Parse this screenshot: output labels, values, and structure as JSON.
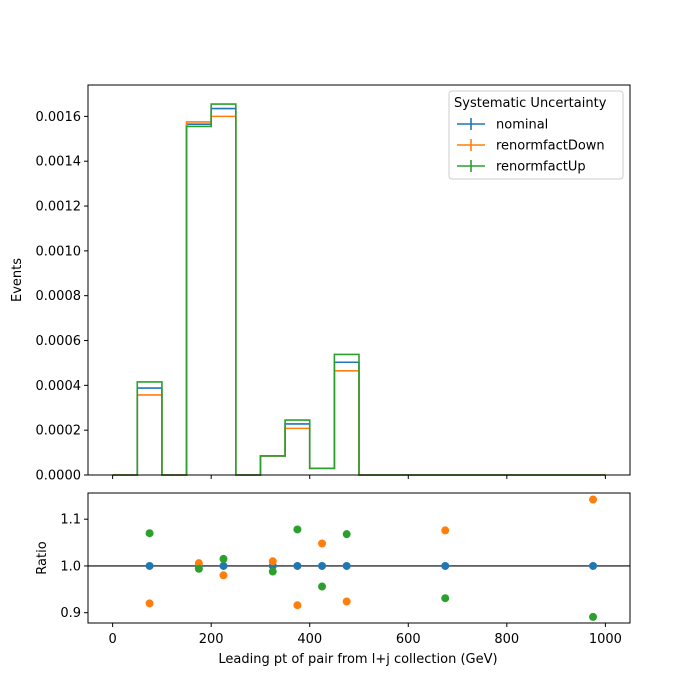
{
  "colors": {
    "nominal": "#1f77b4",
    "renormfactDown": "#ff7f0e",
    "renormfactUp": "#2ca02c",
    "axes": "#000000",
    "reference_line": "#000000"
  },
  "chart_data": [
    {
      "type": "histogram-step",
      "title": "",
      "xlabel": "",
      "ylabel": "Events",
      "xlim": [
        -50,
        1050
      ],
      "ylim": [
        0,
        0.00174
      ],
      "yticks": [
        0.0,
        0.0002,
        0.0004,
        0.0006,
        0.0008,
        0.001,
        0.0012,
        0.0014,
        0.0016
      ],
      "ytick_labels": [
        "0.0000",
        "0.0002",
        "0.0004",
        "0.0006",
        "0.0008",
        "0.0010",
        "0.0012",
        "0.0014",
        "0.0016"
      ],
      "xticks": [
        0,
        200,
        400,
        600,
        800,
        1000
      ],
      "grid": false,
      "legend": {
        "title": "Systematic Uncertainty",
        "placement": "top-right",
        "entries": [
          "nominal",
          "renormfactDown",
          "renormfactUp"
        ]
      },
      "bin_edges": [
        0,
        50,
        100,
        150,
        200,
        250,
        300,
        350,
        400,
        450,
        500,
        850,
        1000
      ],
      "series": [
        {
          "name": "nominal",
          "values": [
            0.0,
            0.000388,
            0.0,
            0.001565,
            0.001635,
            0.0,
            8.5e-05,
            0.000228,
            3e-05,
            0.000503,
            0.0,
            0.0
          ]
        },
        {
          "name": "renormfactDown",
          "values": [
            0.0,
            0.000357,
            0.0,
            0.001575,
            0.0016,
            0.0,
            8.5e-05,
            0.000208,
            3e-05,
            0.000465,
            0.0,
            0.0
          ]
        },
        {
          "name": "renormfactUp",
          "values": [
            0.0,
            0.000415,
            0.0,
            0.001555,
            0.001655,
            0.0,
            8.5e-05,
            0.000245,
            3e-05,
            0.000538,
            0.0,
            0.0
          ]
        }
      ]
    },
    {
      "type": "scatter",
      "title": "",
      "xlabel": "Leading pt of pair from l+j collection (GeV)",
      "ylabel": "Ratio",
      "xlim": [
        -50,
        1050
      ],
      "ylim": [
        0.878,
        1.156
      ],
      "yticks": [
        0.9,
        1.0,
        1.1
      ],
      "ytick_labels": [
        "0.9",
        "1.0",
        "1.1"
      ],
      "xticks": [
        0,
        200,
        400,
        600,
        800,
        1000
      ],
      "xtick_labels": [
        "0",
        "200",
        "400",
        "600",
        "800",
        "1000"
      ],
      "reference_line": 1.0,
      "grid": false,
      "series": [
        {
          "name": "nominal",
          "x": [
            75,
            175,
            225,
            325,
            375,
            425,
            475,
            675,
            975
          ],
          "y": [
            1.0,
            1.0,
            1.0,
            1.0,
            1.0,
            1.0,
            1.0,
            1.0,
            1.0
          ]
        },
        {
          "name": "renormfactDown",
          "x": [
            75,
            175,
            225,
            325,
            375,
            425,
            475,
            675,
            975
          ],
          "y": [
            0.92,
            1.006,
            0.98,
            1.01,
            0.916,
            1.048,
            0.924,
            1.076,
            1.142
          ]
        },
        {
          "name": "renormfactUp",
          "x": [
            75,
            175,
            225,
            325,
            375,
            425,
            475,
            675,
            975
          ],
          "y": [
            1.07,
            0.994,
            1.015,
            0.988,
            1.078,
            0.956,
            1.068,
            0.931,
            0.891
          ]
        }
      ]
    }
  ]
}
